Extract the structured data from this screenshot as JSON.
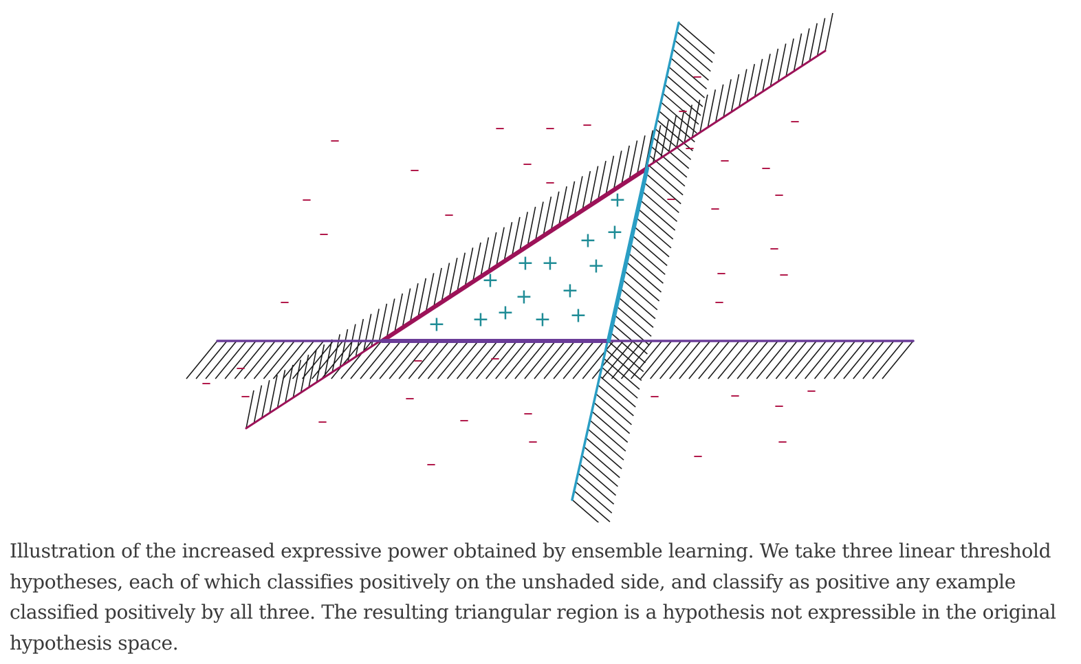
{
  "caption": "Illustration of the increased expressive power obtained by ensemble learning. We take three linear threshold hypotheses, each of which classifies positively on the unshaded side, and classify as positive any example classified positively by all three. The resulting triangular region is a hypothesis not expressible in the original hypothesis space.",
  "diagram": {
    "positive_symbol": "+",
    "negative_symbol": "–",
    "colors": {
      "positive": "#1f8c96",
      "negative": "#b01446",
      "line_magenta": "#9c1258",
      "line_purple": "#6a3c98",
      "line_cyan": "#2a9ec4",
      "hatch": "#1a1a1a"
    }
  }
}
